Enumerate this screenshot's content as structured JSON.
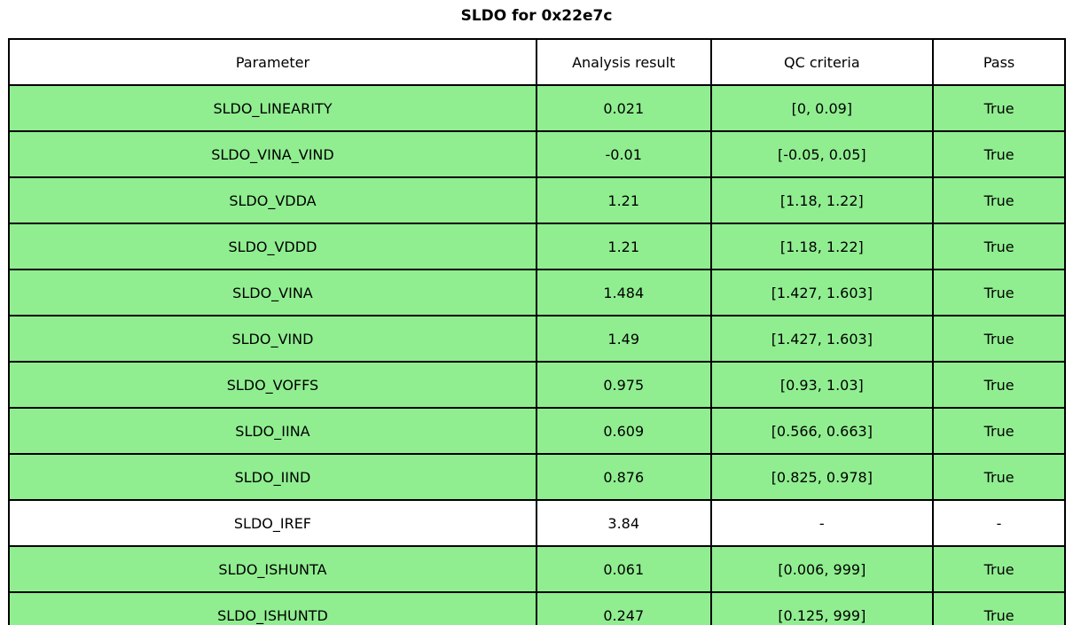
{
  "title": "SLDO for 0x22e7c",
  "chart_data": {
    "type": "table",
    "title": "SLDO for 0x22e7c",
    "columns": [
      "Parameter",
      "Analysis result",
      "QC criteria",
      "Pass"
    ],
    "rows": [
      {
        "parameter": "SLDO_LINEARITY",
        "result": "0.021",
        "criteria": "[0, 0.09]",
        "pass": "True",
        "highlight_green": true
      },
      {
        "parameter": "SLDO_VINA_VIND",
        "result": "-0.01",
        "criteria": "[-0.05, 0.05]",
        "pass": "True",
        "highlight_green": true
      },
      {
        "parameter": "SLDO_VDDA",
        "result": "1.21",
        "criteria": "[1.18, 1.22]",
        "pass": "True",
        "highlight_green": true
      },
      {
        "parameter": "SLDO_VDDD",
        "result": "1.21",
        "criteria": "[1.18, 1.22]",
        "pass": "True",
        "highlight_green": true
      },
      {
        "parameter": "SLDO_VINA",
        "result": "1.484",
        "criteria": "[1.427, 1.603]",
        "pass": "True",
        "highlight_green": true
      },
      {
        "parameter": "SLDO_VIND",
        "result": "1.49",
        "criteria": "[1.427, 1.603]",
        "pass": "True",
        "highlight_green": true
      },
      {
        "parameter": "SLDO_VOFFS",
        "result": "0.975",
        "criteria": "[0.93, 1.03]",
        "pass": "True",
        "highlight_green": true
      },
      {
        "parameter": "SLDO_IINA",
        "result": "0.609",
        "criteria": "[0.566, 0.663]",
        "pass": "True",
        "highlight_green": true
      },
      {
        "parameter": "SLDO_IIND",
        "result": "0.876",
        "criteria": "[0.825, 0.978]",
        "pass": "True",
        "highlight_green": true
      },
      {
        "parameter": "SLDO_IREF",
        "result": "3.84",
        "criteria": "-",
        "pass": "-",
        "highlight_green": false
      },
      {
        "parameter": "SLDO_ISHUNTA",
        "result": "0.061",
        "criteria": "[0.006, 999]",
        "pass": "True",
        "highlight_green": true
      },
      {
        "parameter": "SLDO_ISHUNTD",
        "result": "0.247",
        "criteria": "[0.125, 999]",
        "pass": "True",
        "highlight_green": true
      }
    ]
  },
  "colors": {
    "pass_green": "#90ee90",
    "plain_row": "#ffffff",
    "border": "#000000"
  }
}
